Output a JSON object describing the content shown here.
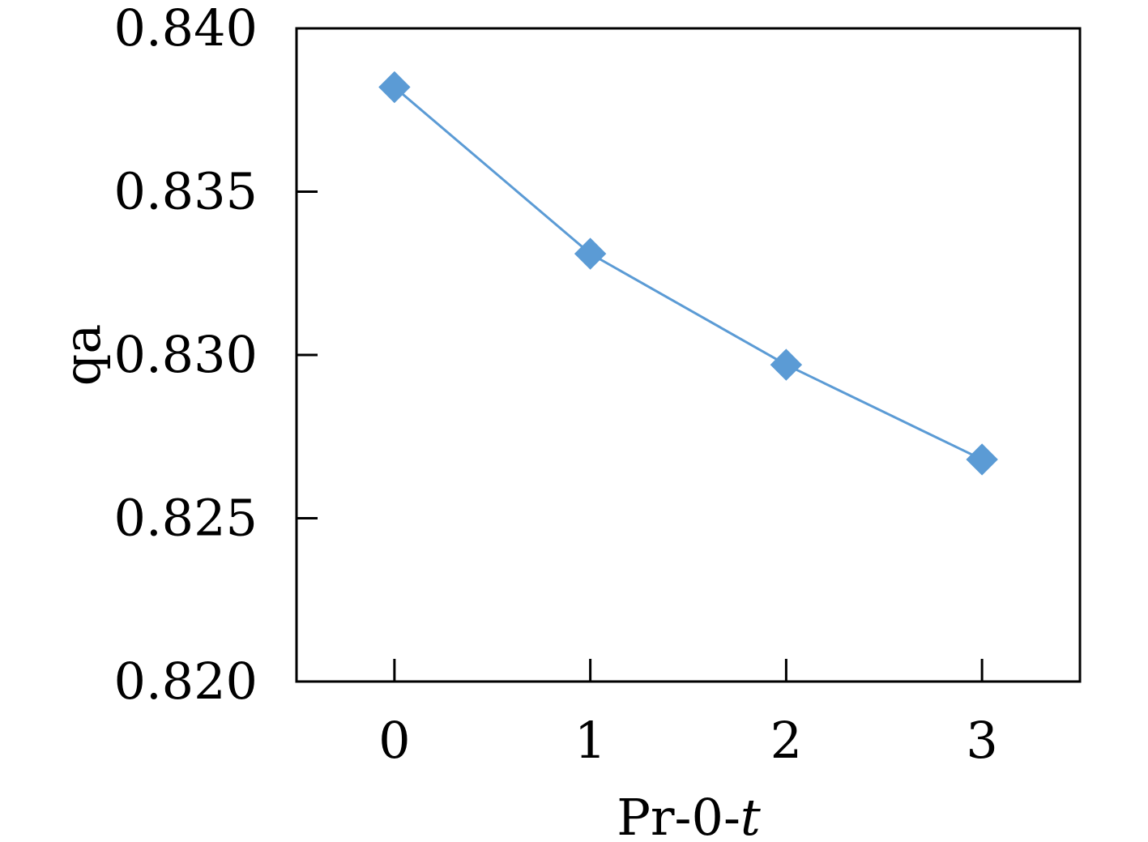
{
  "chart_data": {
    "type": "line",
    "x": [
      0,
      1,
      2,
      3
    ],
    "x_tick_labels": [
      "0",
      "1",
      "2",
      "3"
    ],
    "xlim": [
      -0.5,
      3.5
    ],
    "y_ticks": [
      0.84,
      0.835,
      0.83,
      0.825,
      0.82
    ],
    "y_tick_labels": [
      "0.840",
      "0.835",
      "0.830",
      "0.825",
      "0.820"
    ],
    "ylim": [
      0.82,
      0.84
    ],
    "series": [
      {
        "values": [
          0.8382,
          0.8331,
          0.8297,
          0.8268
        ],
        "color": "#5b9bd5",
        "marker": "diamond"
      }
    ],
    "xlabel_prefix": "Pr-0-",
    "xlabel_var": "t",
    "ylabel": "qa",
    "legend": "none",
    "grid": false
  }
}
